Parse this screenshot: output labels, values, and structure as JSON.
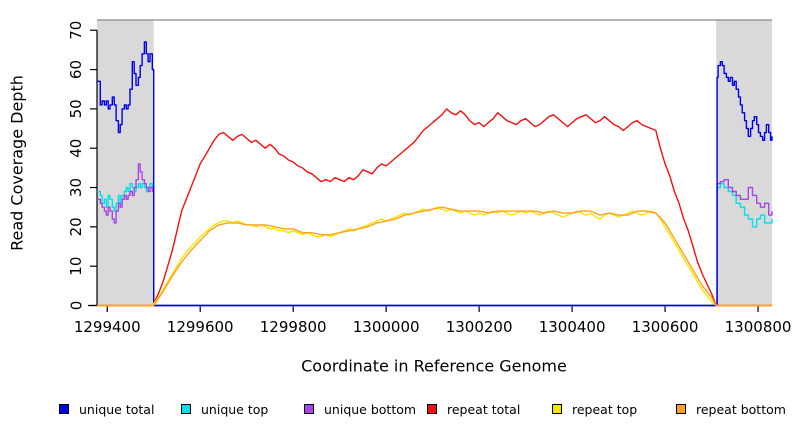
{
  "chart_data": {
    "type": "line",
    "title": "",
    "xlabel": "Coordinate in Reference Genome",
    "ylabel": "Read Coverage Depth",
    "xlim": [
      1299378,
      1300830
    ],
    "ylim": [
      0,
      72.6
    ],
    "x_ticks": [
      1299400,
      1299600,
      1299800,
      1300000,
      1300200,
      1300400,
      1300600,
      1300800
    ],
    "y_ticks": [
      0,
      10,
      20,
      30,
      40,
      50,
      60,
      70
    ],
    "grid": false,
    "legend_position": "bottom",
    "axis_color": "#000000",
    "top_border_color": "#8a8a8a",
    "shaded_regions": [
      {
        "name": "left-flank",
        "from": 1299378,
        "to": 1299500,
        "color": "#d9d9d9"
      },
      {
        "name": "right-flank",
        "from": 1300710,
        "to": 1300830,
        "color": "#d9d9d9"
      }
    ],
    "draw_order": [
      1,
      2,
      0,
      3,
      4,
      5
    ],
    "series": [
      {
        "name": "unique total",
        "color": "#0000e6",
        "step": true,
        "points": [
          [
            1299378,
            57
          ],
          [
            1299385,
            51
          ],
          [
            1299389,
            52
          ],
          [
            1299394,
            51
          ],
          [
            1299398,
            52
          ],
          [
            1299402,
            50
          ],
          [
            1299406,
            51
          ],
          [
            1299411,
            53
          ],
          [
            1299415,
            51
          ],
          [
            1299419,
            47
          ],
          [
            1299424,
            44
          ],
          [
            1299428,
            46
          ],
          [
            1299432,
            50
          ],
          [
            1299437,
            51
          ],
          [
            1299441,
            50
          ],
          [
            1299445,
            51
          ],
          [
            1299449,
            55
          ],
          [
            1299454,
            62
          ],
          [
            1299458,
            59
          ],
          [
            1299462,
            56
          ],
          [
            1299467,
            58
          ],
          [
            1299471,
            61
          ],
          [
            1299475,
            64
          ],
          [
            1299480,
            67
          ],
          [
            1299484,
            64
          ],
          [
            1299488,
            62
          ],
          [
            1299492,
            64
          ],
          [
            1299497,
            60
          ],
          [
            1299500,
            0
          ],
          [
            1300710,
            0
          ],
          [
            1300712,
            58
          ],
          [
            1300714,
            61
          ],
          [
            1300719,
            62
          ],
          [
            1300723,
            61
          ],
          [
            1300727,
            59
          ],
          [
            1300732,
            58
          ],
          [
            1300736,
            57
          ],
          [
            1300740,
            58
          ],
          [
            1300745,
            56
          ],
          [
            1300749,
            57
          ],
          [
            1300753,
            55
          ],
          [
            1300758,
            53
          ],
          [
            1300762,
            51
          ],
          [
            1300766,
            49
          ],
          [
            1300771,
            47
          ],
          [
            1300775,
            45
          ],
          [
            1300779,
            43
          ],
          [
            1300784,
            45
          ],
          [
            1300788,
            47
          ],
          [
            1300792,
            48
          ],
          [
            1300797,
            46
          ],
          [
            1300801,
            44
          ],
          [
            1300805,
            43
          ],
          [
            1300810,
            42
          ],
          [
            1300814,
            44
          ],
          [
            1300818,
            46
          ],
          [
            1300823,
            44
          ],
          [
            1300827,
            42
          ],
          [
            1300830,
            43
          ]
        ]
      },
      {
        "name": "unique top",
        "color": "#00dfe8",
        "step": true,
        "points": [
          [
            1299378,
            29
          ],
          [
            1299385,
            28
          ],
          [
            1299389,
            26
          ],
          [
            1299394,
            27
          ],
          [
            1299398,
            25
          ],
          [
            1299402,
            28
          ],
          [
            1299406,
            27
          ],
          [
            1299411,
            25
          ],
          [
            1299415,
            24
          ],
          [
            1299419,
            26
          ],
          [
            1299424,
            28
          ],
          [
            1299428,
            26
          ],
          [
            1299432,
            28
          ],
          [
            1299437,
            29
          ],
          [
            1299441,
            30
          ],
          [
            1299445,
            29
          ],
          [
            1299449,
            31
          ],
          [
            1299454,
            30
          ],
          [
            1299458,
            29
          ],
          [
            1299462,
            30
          ],
          [
            1299467,
            31
          ],
          [
            1299471,
            30
          ],
          [
            1299475,
            31
          ],
          [
            1299480,
            30
          ],
          [
            1299484,
            29
          ],
          [
            1299488,
            30
          ],
          [
            1299492,
            31
          ],
          [
            1299497,
            30
          ],
          [
            1299500,
            0
          ],
          [
            1300710,
            0
          ],
          [
            1300712,
            30
          ],
          [
            1300719,
            31
          ],
          [
            1300727,
            30
          ],
          [
            1300736,
            29
          ],
          [
            1300745,
            28
          ],
          [
            1300753,
            26
          ],
          [
            1300762,
            25
          ],
          [
            1300771,
            23
          ],
          [
            1300779,
            22
          ],
          [
            1300788,
            20
          ],
          [
            1300797,
            22
          ],
          [
            1300805,
            23
          ],
          [
            1300814,
            21
          ],
          [
            1300823,
            21
          ],
          [
            1300830,
            22
          ]
        ]
      },
      {
        "name": "unique bottom",
        "color": "#a944e8",
        "step": true,
        "points": [
          [
            1299378,
            27
          ],
          [
            1299385,
            26
          ],
          [
            1299389,
            25
          ],
          [
            1299394,
            24
          ],
          [
            1299398,
            23
          ],
          [
            1299402,
            25
          ],
          [
            1299406,
            24
          ],
          [
            1299411,
            22
          ],
          [
            1299415,
            21
          ],
          [
            1299419,
            24
          ],
          [
            1299424,
            26
          ],
          [
            1299428,
            25
          ],
          [
            1299432,
            27
          ],
          [
            1299437,
            28
          ],
          [
            1299441,
            27
          ],
          [
            1299445,
            28
          ],
          [
            1299449,
            29
          ],
          [
            1299454,
            28
          ],
          [
            1299458,
            30
          ],
          [
            1299462,
            32
          ],
          [
            1299467,
            36
          ],
          [
            1299471,
            34
          ],
          [
            1299475,
            32
          ],
          [
            1299480,
            31
          ],
          [
            1299484,
            30
          ],
          [
            1299488,
            29
          ],
          [
            1299492,
            30
          ],
          [
            1299497,
            29
          ],
          [
            1299500,
            0
          ],
          [
            1300710,
            0
          ],
          [
            1300712,
            31
          ],
          [
            1300719,
            31.5
          ],
          [
            1300727,
            32
          ],
          [
            1300736,
            30
          ],
          [
            1300745,
            29
          ],
          [
            1300753,
            28
          ],
          [
            1300762,
            27
          ],
          [
            1300771,
            27
          ],
          [
            1300779,
            30
          ],
          [
            1300788,
            28
          ],
          [
            1300797,
            26
          ],
          [
            1300805,
            25
          ],
          [
            1300814,
            26
          ],
          [
            1300823,
            23
          ],
          [
            1300830,
            24
          ]
        ]
      },
      {
        "name": "repeat total",
        "color": "#ee1111",
        "step": false,
        "pre": [
          [
            1299378,
            0
          ],
          [
            1299497,
            0
          ]
        ],
        "uniform": {
          "start": 1299500,
          "step": 10
        },
        "values": [
          0.5,
          3,
          6,
          10,
          14,
          19,
          24,
          27,
          30,
          33,
          36,
          38,
          40,
          42,
          43.5,
          44,
          43,
          42,
          43,
          43.5,
          42.5,
          41.5,
          42,
          41,
          40,
          41,
          40,
          38.5,
          38,
          37,
          36.5,
          35.5,
          35,
          34,
          33.5,
          32.5,
          31.5,
          32,
          31.5,
          32.5,
          32,
          31.5,
          32.5,
          32,
          33,
          34.5,
          34,
          33.5,
          35,
          36,
          35.5,
          36.5,
          37.5,
          38.5,
          39.5,
          40.5,
          41.5,
          43,
          44.5,
          45.5,
          46.5,
          47.5,
          48.5,
          50,
          49,
          48.5,
          49.5,
          48.5,
          47,
          46,
          46.5,
          45.5,
          46.5,
          47.5,
          49,
          48,
          47,
          46.5,
          46,
          47,
          47.5,
          46.5,
          45.5,
          46,
          47,
          48,
          48.5,
          47.5,
          46.5,
          45.5,
          46.5,
          47.5,
          48,
          48.5,
          47.5,
          46.5,
          47,
          48,
          47,
          46,
          45.5,
          44.5,
          45.5,
          46.5,
          47,
          46,
          45.5,
          45,
          44.5,
          40,
          36,
          33,
          29,
          26,
          22,
          19,
          15,
          11,
          8,
          5.5,
          3,
          0
        ],
        "post": [
          [
            1300830,
            0
          ]
        ]
      },
      {
        "name": "repeat top",
        "color": "#f5e400",
        "step": false,
        "pre": [
          [
            1299378,
            0
          ],
          [
            1299497,
            0
          ]
        ],
        "uniform": {
          "start": 1299500,
          "step": 10
        },
        "values": [
          0.5,
          2,
          4,
          6,
          8,
          10,
          12,
          13.5,
          15,
          16,
          17.5,
          18.5,
          19.5,
          20.5,
          21,
          21.5,
          21.5,
          21,
          21.5,
          21,
          20.5,
          20.5,
          20,
          20.5,
          20,
          19.5,
          19.5,
          19,
          19,
          18.5,
          19,
          18.5,
          18,
          18.5,
          18,
          17.5,
          17.5,
          18,
          17.5,
          18,
          18.5,
          19,
          19.5,
          19,
          19.5,
          20,
          20.5,
          21,
          21.5,
          22,
          21.5,
          22,
          22.5,
          23,
          23.5,
          23,
          23.5,
          24,
          24.5,
          24,
          24.5,
          25,
          24.5,
          24,
          24.5,
          24,
          23.5,
          24,
          23.5,
          23,
          23.5,
          23,
          23.5,
          24,
          23.5,
          24,
          23.5,
          23,
          23.5,
          24,
          23.5,
          24,
          23.5,
          23,
          23.5,
          24,
          23.5,
          23,
          22.5,
          23,
          23.5,
          24,
          23.5,
          23,
          23.5,
          22.5,
          22,
          23,
          23.5,
          23,
          22.5,
          23,
          23.5,
          24,
          23.5,
          23,
          23.5,
          24,
          23.5,
          22,
          20,
          18,
          16,
          14,
          12,
          10,
          8,
          6,
          4,
          2.5,
          1,
          0
        ],
        "post": [
          [
            1300830,
            0
          ]
        ]
      },
      {
        "name": "repeat bottom",
        "color": "#ffa020",
        "step": false,
        "points": [
          [
            1299378,
            0
          ],
          [
            1299500,
            0
          ],
          [
            1299520,
            3.5
          ],
          [
            1299540,
            7.5
          ],
          [
            1299560,
            11
          ],
          [
            1299580,
            14
          ],
          [
            1299600,
            16.5
          ],
          [
            1299620,
            19
          ],
          [
            1299640,
            20.5
          ],
          [
            1299660,
            21
          ],
          [
            1299680,
            21
          ],
          [
            1299700,
            20.5
          ],
          [
            1299720,
            20.5
          ],
          [
            1299740,
            20.5
          ],
          [
            1299760,
            20
          ],
          [
            1299780,
            19.5
          ],
          [
            1299800,
            19.5
          ],
          [
            1299820,
            18.5
          ],
          [
            1299840,
            18.5
          ],
          [
            1299860,
            18
          ],
          [
            1299880,
            18
          ],
          [
            1299900,
            18.5
          ],
          [
            1299920,
            19
          ],
          [
            1299940,
            19.5
          ],
          [
            1299960,
            20
          ],
          [
            1299980,
            21
          ],
          [
            1300000,
            21.5
          ],
          [
            1300020,
            22
          ],
          [
            1300040,
            23
          ],
          [
            1300060,
            23.5
          ],
          [
            1300080,
            24
          ],
          [
            1300100,
            24.5
          ],
          [
            1300120,
            25
          ],
          [
            1300140,
            24.5
          ],
          [
            1300160,
            24
          ],
          [
            1300180,
            24
          ],
          [
            1300200,
            24
          ],
          [
            1300220,
            23.5
          ],
          [
            1300240,
            24
          ],
          [
            1300260,
            24
          ],
          [
            1300280,
            24
          ],
          [
            1300300,
            24
          ],
          [
            1300320,
            24
          ],
          [
            1300340,
            23.5
          ],
          [
            1300360,
            24
          ],
          [
            1300380,
            23.5
          ],
          [
            1300400,
            23.5
          ],
          [
            1300420,
            24
          ],
          [
            1300440,
            24
          ],
          [
            1300460,
            23
          ],
          [
            1300480,
            23.5
          ],
          [
            1300500,
            23
          ],
          [
            1300520,
            23
          ],
          [
            1300540,
            24
          ],
          [
            1300560,
            24
          ],
          [
            1300580,
            23.5
          ],
          [
            1300600,
            21
          ],
          [
            1300620,
            17
          ],
          [
            1300640,
            13
          ],
          [
            1300660,
            9
          ],
          [
            1300680,
            5
          ],
          [
            1300700,
            2
          ],
          [
            1300710,
            0
          ],
          [
            1300830,
            0
          ]
        ]
      }
    ]
  }
}
